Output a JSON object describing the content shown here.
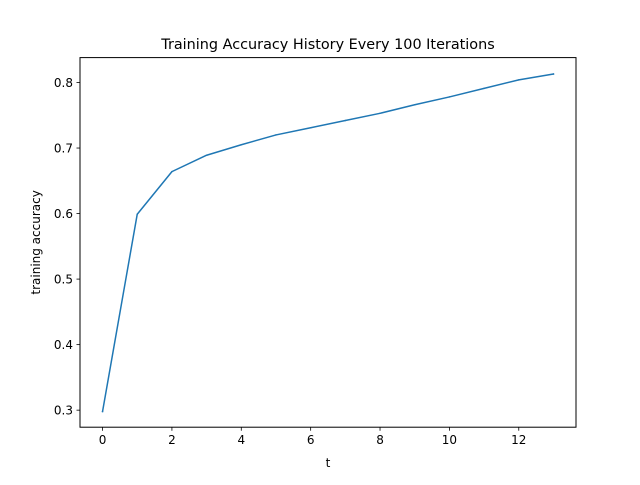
{
  "chart_data": {
    "type": "line",
    "title": "Training Accuracy History Every 100 Iterations",
    "xlabel": "t",
    "ylabel": "training accuracy",
    "xlim": [
      -0.65,
      13.65
    ],
    "ylim": [
      0.274,
      0.838
    ],
    "xticks": [
      0,
      2,
      4,
      6,
      8,
      10,
      12
    ],
    "xtick_labels": [
      "0",
      "2",
      "4",
      "6",
      "8",
      "10",
      "12"
    ],
    "yticks": [
      0.3,
      0.4,
      0.5,
      0.6,
      0.7,
      0.8
    ],
    "ytick_labels": [
      "0.3",
      "0.4",
      "0.5",
      "0.6",
      "0.7",
      "0.8"
    ],
    "grid": false,
    "series": [
      {
        "color": "#1f77b4",
        "x": [
          0,
          1,
          2,
          3,
          4,
          5,
          6,
          7,
          8,
          9,
          10,
          11,
          12,
          13
        ],
        "y": [
          0.298,
          0.599,
          0.664,
          0.689,
          0.705,
          0.72,
          0.731,
          0.742,
          0.753,
          0.766,
          0.778,
          0.791,
          0.804,
          0.813
        ]
      }
    ]
  }
}
